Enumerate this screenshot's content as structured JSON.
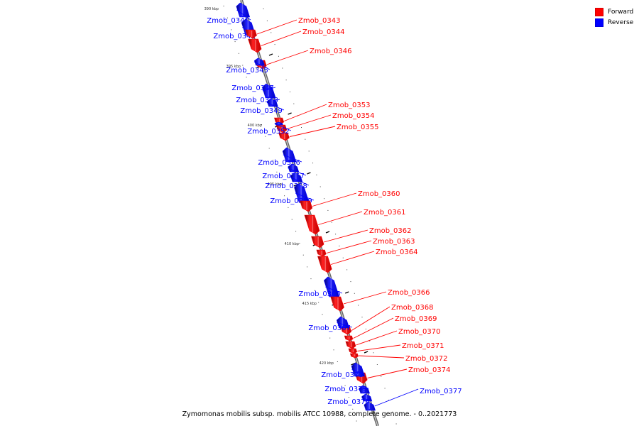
{
  "legend": {
    "forward_label": "Forward",
    "reverse_label": "Reverse",
    "forward_color": "#ff0000",
    "reverse_color": "#0000ff"
  },
  "caption": "Zymomonas mobilis subsp. mobilis ATCC 10988, complete genome. - 0..2021773",
  "ticks": [
    "390 kbp",
    "395 kbp",
    "400 kbp",
    "405 kbp",
    "410 kbp",
    "415 kbp",
    "420 kbp"
  ],
  "genes": [
    {
      "name": "Zmob_0341",
      "strand": "reverse"
    },
    {
      "name": "Zmob_0342",
      "strand": "reverse"
    },
    {
      "name": "Zmob_0343",
      "strand": "forward"
    },
    {
      "name": "Zmob_0344",
      "strand": "forward"
    },
    {
      "name": "Zmob_0346",
      "strand": "forward"
    },
    {
      "name": "Zmob_0345",
      "strand": "reverse"
    },
    {
      "name": "Zmob_0347",
      "strand": "reverse"
    },
    {
      "name": "Zmob_0348",
      "strand": "reverse"
    },
    {
      "name": "Zmob_0349",
      "strand": "reverse"
    },
    {
      "name": "Zmob_0353",
      "strand": "forward"
    },
    {
      "name": "Zmob_0354",
      "strand": "forward"
    },
    {
      "name": "Zmob_0355",
      "strand": "forward"
    },
    {
      "name": "Zmob_0352",
      "strand": "reverse"
    },
    {
      "name": "Zmob_0356",
      "strand": "reverse"
    },
    {
      "name": "Zmob_0357",
      "strand": "reverse"
    },
    {
      "name": "Zmob_0358",
      "strand": "reverse"
    },
    {
      "name": "Zmob_0359",
      "strand": "reverse"
    },
    {
      "name": "Zmob_0360",
      "strand": "forward"
    },
    {
      "name": "Zmob_0361",
      "strand": "forward"
    },
    {
      "name": "Zmob_0362",
      "strand": "forward"
    },
    {
      "name": "Zmob_0363",
      "strand": "forward"
    },
    {
      "name": "Zmob_0364",
      "strand": "forward"
    },
    {
      "name": "Zmob_0365",
      "strand": "reverse"
    },
    {
      "name": "Zmob_0366",
      "strand": "forward"
    },
    {
      "name": "Zmob_0368",
      "strand": "forward"
    },
    {
      "name": "Zmob_0369",
      "strand": "forward"
    },
    {
      "name": "Zmob_0370",
      "strand": "forward"
    },
    {
      "name": "Zmob_0371",
      "strand": "forward"
    },
    {
      "name": "Zmob_0372",
      "strand": "forward"
    },
    {
      "name": "Zmob_0374",
      "strand": "forward"
    },
    {
      "name": "Zmob_0367",
      "strand": "reverse"
    },
    {
      "name": "Zmob_0373",
      "strand": "reverse"
    },
    {
      "name": "Zmob_0375",
      "strand": "reverse"
    },
    {
      "name": "Zmob_0376",
      "strand": "reverse"
    },
    {
      "name": "Zmob_0377",
      "strand": "reverse"
    }
  ]
}
